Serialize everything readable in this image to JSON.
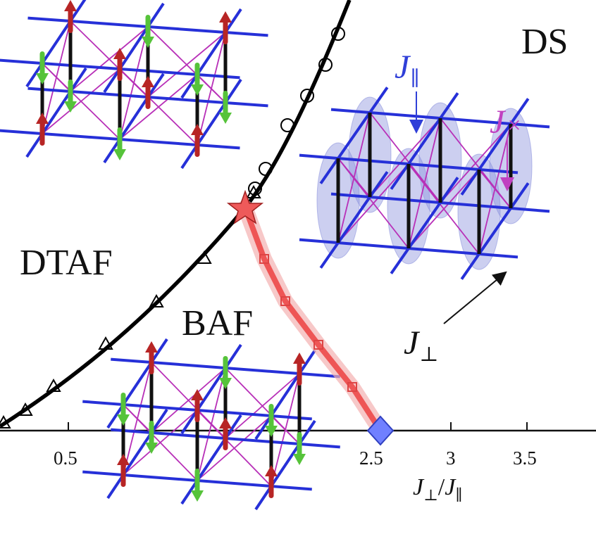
{
  "phases": {
    "ds": "DS",
    "dtaf": "DTAF",
    "baf": "BAF"
  },
  "axis": {
    "ticks": [
      "0.5",
      "2.5",
      "3",
      "3.5"
    ],
    "xlabel_num": "J",
    "xlabel_num_sub": "⊥",
    "xlabel_sep": "/",
    "xlabel_den": "J",
    "xlabel_den_sub": "∥"
  },
  "couplings": {
    "parallel": {
      "symbol": "J",
      "sub": "∥",
      "color": "#2f3fd8"
    },
    "cross": {
      "symbol": "J",
      "sub": "×",
      "color": "#c040c0"
    },
    "perp": {
      "symbol": "J",
      "sub": "⊥",
      "color": "#111111"
    }
  },
  "colors": {
    "lattice_rung": "#2630d8",
    "cross_bonds": "#b830b8",
    "spin_up": "#b72525",
    "spin_down": "#56c33a",
    "dimer": "#8d95dd",
    "boundary": "#000000",
    "transition_line": "#ee5555",
    "special_point": "#6f80ff"
  },
  "markers": {
    "upper_boundary": "circle",
    "lower_boundary": "triangle",
    "transition_line": "square",
    "multicritical": "star",
    "endpoint": "diamond"
  }
}
